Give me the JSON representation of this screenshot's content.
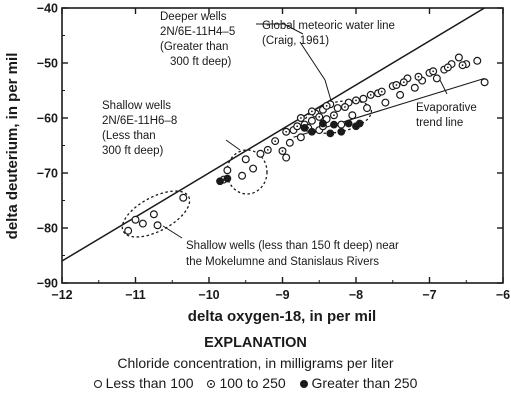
{
  "chart_data": {
    "type": "scatter",
    "xlabel": "delta oxygen-18, in per mil",
    "ylabel": "delta deuterium, in per mil",
    "xlim": [
      -12,
      -6
    ],
    "ylim": [
      -90,
      -40
    ],
    "x_ticks": [
      -12,
      -11,
      -10,
      -9,
      -8,
      -7,
      -6
    ],
    "y_ticks": [
      -90,
      -80,
      -70,
      -60,
      -50,
      -40
    ],
    "x_tick_labels": [
      "−12",
      "−11",
      "−10",
      "−9",
      "−8",
      "−7",
      "−6"
    ],
    "y_tick_labels": [
      "−90",
      "−80",
      "−70",
      "−60",
      "−50",
      "−40"
    ],
    "grid": false,
    "series": [
      {
        "name": "Less than 100",
        "marker": "open-circle",
        "points": [
          [
            -11.1,
            -80.5
          ],
          [
            -11.0,
            -78.5
          ],
          [
            -10.9,
            -79.2
          ],
          [
            -10.7,
            -79.5
          ],
          [
            -10.75,
            -77.5
          ],
          [
            -10.35,
            -74.5
          ],
          [
            -9.75,
            -69.5
          ],
          [
            -9.55,
            -70.5
          ],
          [
            -9.5,
            -67.5
          ],
          [
            -9.4,
            -69.2
          ],
          [
            -9.3,
            -66.5
          ],
          [
            -8.95,
            -67.2
          ],
          [
            -8.9,
            -64.5
          ],
          [
            -8.85,
            -62.2
          ],
          [
            -8.75,
            -63.5
          ],
          [
            -8.7,
            -61.2
          ],
          [
            -8.6,
            -60.5
          ],
          [
            -8.55,
            -59.2
          ],
          [
            -8.5,
            -62.2
          ],
          [
            -8.45,
            -58.5
          ],
          [
            -8.4,
            -60.2
          ],
          [
            -8.35,
            -57.5
          ],
          [
            -8.25,
            -58.2
          ],
          [
            -8.2,
            -61.2
          ],
          [
            -8.1,
            -57.2
          ],
          [
            -8.05,
            -59.5
          ],
          [
            -7.9,
            -56.5
          ],
          [
            -7.85,
            -58.2
          ],
          [
            -7.7,
            -55.5
          ],
          [
            -7.6,
            -57.2
          ],
          [
            -7.5,
            -54.2
          ],
          [
            -7.4,
            -55.8
          ],
          [
            -7.3,
            -52.8
          ],
          [
            -7.2,
            -54.5
          ],
          [
            -7.1,
            -53.2
          ],
          [
            -7.0,
            -51.8
          ],
          [
            -6.9,
            -52.8
          ],
          [
            -6.8,
            -51.2
          ],
          [
            -6.7,
            -50.2
          ],
          [
            -6.6,
            -49.0
          ],
          [
            -6.5,
            -50.2
          ],
          [
            -6.35,
            -49.6
          ],
          [
            -6.25,
            -53.5
          ]
        ]
      },
      {
        "name": "100 to 250",
        "marker": "dotted-circle",
        "points": [
          [
            -9.8,
            -71.2
          ],
          [
            -9.2,
            -65.8
          ],
          [
            -9.1,
            -64.2
          ],
          [
            -9.0,
            -66.0
          ],
          [
            -8.95,
            -62.5
          ],
          [
            -8.8,
            -61.5
          ],
          [
            -8.75,
            -60.0
          ],
          [
            -8.65,
            -61.8
          ],
          [
            -8.6,
            -58.8
          ],
          [
            -8.5,
            -59.8
          ],
          [
            -8.45,
            -61.5
          ],
          [
            -8.4,
            -57.8
          ],
          [
            -8.3,
            -59.5
          ],
          [
            -8.15,
            -58.0
          ],
          [
            -8.0,
            -56.8
          ],
          [
            -7.8,
            -55.8
          ],
          [
            -7.65,
            -55.2
          ],
          [
            -7.45,
            -54.0
          ],
          [
            -7.35,
            -53.5
          ],
          [
            -7.15,
            -52.5
          ],
          [
            -6.95,
            -51.5
          ],
          [
            -6.75,
            -50.8
          ],
          [
            -6.55,
            -50.4
          ]
        ]
      },
      {
        "name": "Greater than 250",
        "marker": "filled-circle",
        "points": [
          [
            -9.85,
            -71.5
          ],
          [
            -9.75,
            -71.0
          ],
          [
            -8.7,
            -61.8
          ],
          [
            -8.6,
            -62.5
          ],
          [
            -8.45,
            -61.0
          ],
          [
            -8.35,
            -62.8
          ],
          [
            -8.3,
            -61.2
          ],
          [
            -8.2,
            -62.5
          ],
          [
            -8.1,
            -61.0
          ],
          [
            -8.0,
            -61.5
          ],
          [
            -7.95,
            -61.0
          ]
        ]
      }
    ],
    "lines": [
      {
        "name": "Global meteoric water line",
        "x": [
          -12,
          -5.94
        ],
        "y": [
          -86,
          -37.5
        ]
      },
      {
        "name": "Evaporative trend line",
        "x": [
          -8.85,
          -6.25
        ],
        "y": [
          -63.5,
          -52.8
        ]
      }
    ],
    "annotations": [
      {
        "lines": [
          "Global meteoric water line",
          "(Craig, 1961)"
        ]
      },
      {
        "lines": [
          "Deeper wells",
          "2N/6E-11H4–5",
          "(Greater than",
          "300 ft deep)"
        ]
      },
      {
        "lines": [
          "Shallow wells",
          "2N/6E-11H6–8",
          "(Less than",
          "300 ft deep)"
        ]
      },
      {
        "lines": [
          "Evaporative",
          "trend line"
        ]
      },
      {
        "lines": [
          "Shallow wells (less than 150 ft deep) near",
          "the Mokelumne and Stanislaus Rivers"
        ]
      }
    ],
    "explanation": {
      "title": "EXPLANATION",
      "subtitle": "Chloride concentration, in milligrams per liter",
      "legend": [
        "Less than 100",
        "100 to 250",
        "Greater than 250"
      ]
    }
  }
}
